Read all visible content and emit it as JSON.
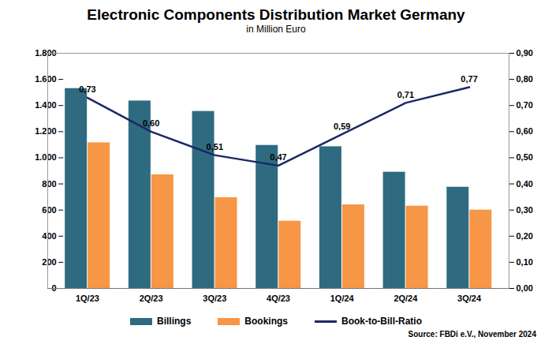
{
  "chart_data": {
    "type": "bar",
    "title": "Electronic Components Distribution Market Germany",
    "subtitle": "in Million Euro",
    "annotations": [
      "Source: FBDi e.V., November 2024"
    ],
    "categories": [
      "1Q/23",
      "2Q/23",
      "3Q/23",
      "4Q/23",
      "1Q/24",
      "2Q/24",
      "3Q/24"
    ],
    "series": [
      {
        "name": "Billings",
        "type": "bar",
        "color": "#2e6b80",
        "values": [
          1530,
          1435,
          1355,
          1095,
          1085,
          890,
          775
        ]
      },
      {
        "name": "Bookings",
        "type": "bar",
        "color": "#f79646",
        "values": [
          1115,
          870,
          695,
          515,
          640,
          630,
          600
        ]
      },
      {
        "name": "Book-to-Bill-Ratio",
        "type": "line",
        "axis": "y2",
        "color": "#1b2766",
        "data_labels": true,
        "values": [
          0.73,
          0.6,
          0.51,
          0.47,
          0.59,
          0.71,
          0.77
        ],
        "value_labels": [
          "0,73",
          "0,60",
          "0,51",
          "0,47",
          "0,59",
          "0,71",
          "0,77"
        ]
      }
    ],
    "ylim": [
      0,
      1800
    ],
    "yticks": [
      0,
      200,
      400,
      600,
      800,
      {
        "value": 1000,
        "label": "1.000"
      },
      {
        "value": 1200,
        "label": "1.200"
      },
      {
        "value": 1400,
        "label": "1.400"
      },
      {
        "value": 1600,
        "label": "1.600"
      },
      {
        "value": 1800,
        "label": "1.800"
      }
    ],
    "y2lim": [
      0,
      0.9
    ],
    "y2ticks": [
      {
        "value": 0,
        "label": "0,00"
      },
      {
        "value": 0.1,
        "label": "0,10"
      },
      {
        "value": 0.2,
        "label": "0,20"
      },
      {
        "value": 0.3,
        "label": "0,30"
      },
      {
        "value": 0.4,
        "label": "0,40"
      },
      {
        "value": 0.5,
        "label": "0,50"
      },
      {
        "value": 0.6,
        "label": "0,60"
      },
      {
        "value": 0.7,
        "label": "0,70"
      },
      {
        "value": 0.8,
        "label": "0,80"
      },
      {
        "value": 0.9,
        "label": "0,90"
      }
    ],
    "grid": false,
    "legend": "bottom"
  }
}
